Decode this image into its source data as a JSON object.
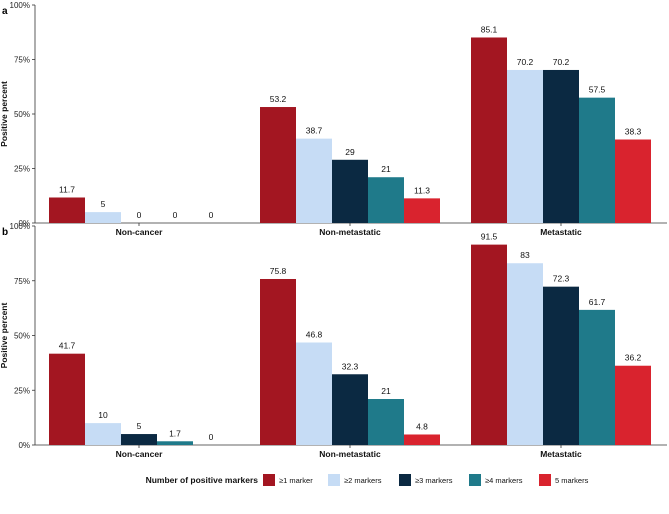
{
  "legend": {
    "title": "Number of positive markers",
    "entries": [
      "≥1 marker",
      "≥2 markers",
      "≥3 markers",
      "≥4 markers",
      "5 markers"
    ]
  },
  "colors": [
    "#a31621",
    "#c6dcf5",
    "#0b2942",
    "#1f7a8a",
    "#d9232e"
  ],
  "chart_data": [
    {
      "panel_label": "a",
      "type": "bar",
      "ylabel": "Positive percent",
      "xlabel": "",
      "ylim": [
        0,
        100
      ],
      "yticks": [
        "0%",
        "25%",
        "50%",
        "75%",
        "100%"
      ],
      "ytick_values": [
        0,
        25,
        50,
        75,
        100
      ],
      "categories": [
        "Non-cancer",
        "Non-metastatic",
        "Metastatic"
      ],
      "series": [
        {
          "name": "≥1 marker",
          "values": [
            11.7,
            53.2,
            85.1
          ],
          "labels": [
            "11.7",
            "53.2",
            "85.1"
          ]
        },
        {
          "name": "≥2 markers",
          "values": [
            5,
            38.7,
            70.2
          ],
          "labels": [
            "5",
            "38.7",
            "70.2"
          ]
        },
        {
          "name": "≥3 markers",
          "values": [
            0,
            29,
            70.2
          ],
          "labels": [
            "0",
            "29",
            "70.2"
          ]
        },
        {
          "name": "≥4 markers",
          "values": [
            0,
            21,
            57.5
          ],
          "labels": [
            "0",
            "21",
            "57.5"
          ]
        },
        {
          "name": "5 markers",
          "values": [
            0,
            11.3,
            38.3
          ],
          "labels": [
            "0",
            "11.3",
            "38.3"
          ]
        }
      ]
    },
    {
      "panel_label": "b",
      "type": "bar",
      "ylabel": "Positive percent",
      "xlabel": "",
      "ylim": [
        0,
        100
      ],
      "yticks": [
        "0%",
        "25%",
        "50%",
        "75%",
        "100%"
      ],
      "ytick_values": [
        0,
        25,
        50,
        75,
        100
      ],
      "categories": [
        "Non-cancer",
        "Non-metastatic",
        "Metastatic"
      ],
      "series": [
        {
          "name": "≥1 marker",
          "values": [
            41.7,
            75.8,
            91.5
          ],
          "labels": [
            "41.7",
            "75.8",
            "91.5"
          ]
        },
        {
          "name": "≥2 markers",
          "values": [
            10,
            46.8,
            83
          ],
          "labels": [
            "10",
            "46.8",
            "83"
          ]
        },
        {
          "name": "≥3 markers",
          "values": [
            5,
            32.3,
            72.3
          ],
          "labels": [
            "5",
            "32.3",
            "72.3"
          ]
        },
        {
          "name": "≥4 markers",
          "values": [
            1.7,
            21,
            61.7
          ],
          "labels": [
            "1.7",
            "21",
            "61.7"
          ]
        },
        {
          "name": "5 markers",
          "values": [
            0,
            4.8,
            36.2
          ],
          "labels": [
            "0",
            "4.8",
            "36.2"
          ]
        }
      ]
    }
  ]
}
